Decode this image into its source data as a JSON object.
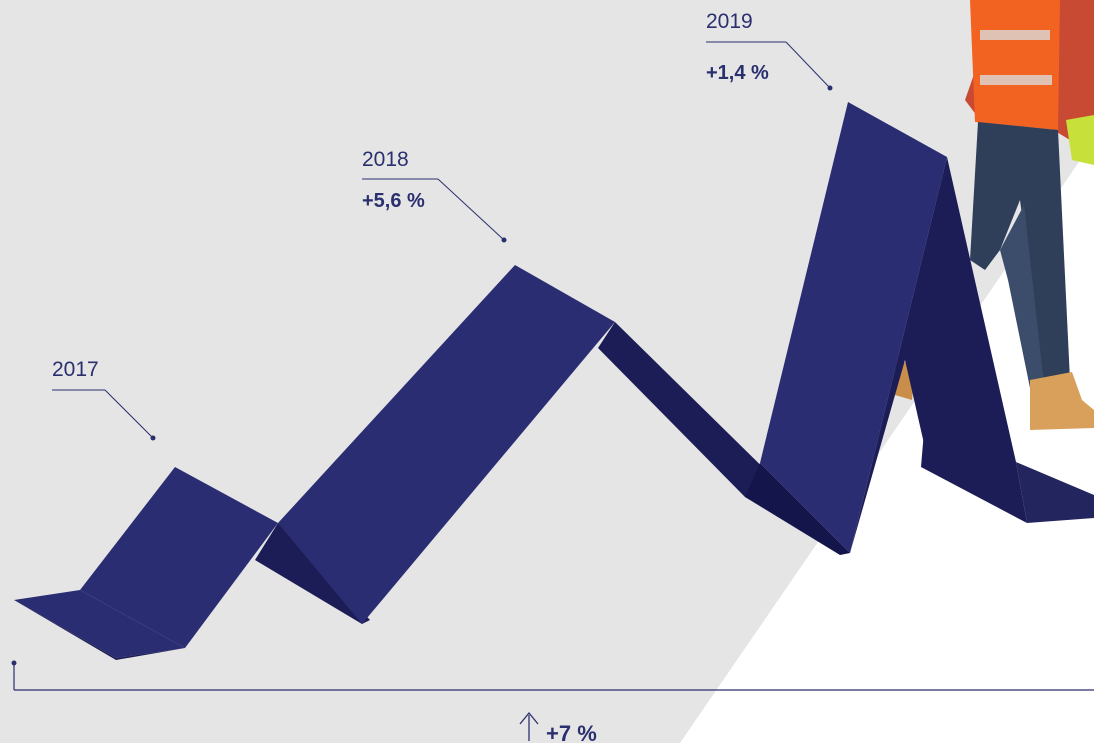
{
  "colors": {
    "background_band": "#e5e5e5",
    "ribbon_front": "#2b2d72",
    "ribbon_side": "#1c1d56",
    "ribbon_dark": "#14154a",
    "label_text": "#2a2f6e",
    "leader_line": "#2a2f6e"
  },
  "chart_data": {
    "type": "line",
    "style": "3d-folded-ribbon",
    "categories": [
      "2017",
      "2018",
      "2019"
    ],
    "series": [
      {
        "values_label": [
          "",
          "+5,6 %",
          "+1,4 %"
        ]
      }
    ],
    "total": {
      "label": "+7 %",
      "icon": "arrow-up-icon"
    },
    "grid": false,
    "legend": "none"
  },
  "decor": {
    "photo": "construction-worker-legs"
  }
}
